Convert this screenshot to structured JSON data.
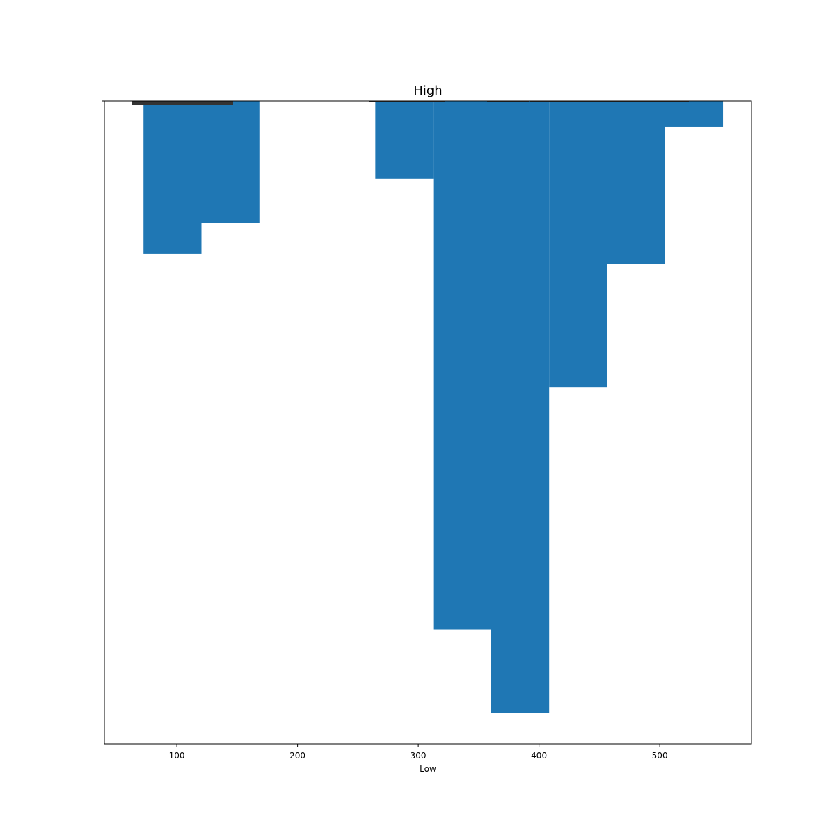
{
  "chart_data": {
    "type": "bar",
    "title": "High",
    "xlabel": "Low",
    "ylabel": "",
    "xlim": [
      40,
      576
    ],
    "ylim": [
      0,
      1
    ],
    "y_inverted": true,
    "grid": false,
    "bar_width": 48,
    "color": "#1f77b4",
    "x_ticks": [
      100,
      200,
      300,
      400,
      500
    ],
    "x_tick_labels": [
      "100",
      "200",
      "300",
      "400",
      "500"
    ],
    "bars": [
      {
        "x": 96.4,
        "value": 0.238
      },
      {
        "x": 144.4,
        "value": 0.19
      },
      {
        "x": 288.4,
        "value": 0.121
      },
      {
        "x": 336.4,
        "value": 0.822
      },
      {
        "x": 384.4,
        "value": 0.952
      },
      {
        "x": 432.4,
        "value": 0.445
      },
      {
        "x": 480.4,
        "value": 0.254
      },
      {
        "x": 528.4,
        "value": 0.04
      }
    ]
  }
}
